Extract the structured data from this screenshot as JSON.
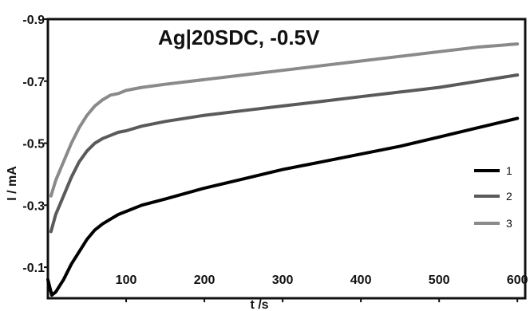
{
  "chart_data": {
    "type": "line",
    "title": "Ag|20SDC, -0.5V",
    "xlabel": "t /s",
    "ylabel": "I / mA",
    "xlim": [
      0,
      610
    ],
    "ylim": [
      0,
      -0.9
    ],
    "y_reversed": true,
    "x_ticks": [
      100,
      200,
      300,
      400,
      500,
      600
    ],
    "y_ticks": [
      -0.1,
      -0.3,
      -0.5,
      -0.7,
      -0.9
    ],
    "x_tick_labels": [
      "100",
      "200",
      "300",
      "400",
      "500",
      "600"
    ],
    "y_tick_labels": [
      "-0.1",
      "-0.3",
      "-0.5",
      "-0.7",
      "-0.9"
    ],
    "grid": false,
    "legend_position": "right",
    "series": [
      {
        "name": "1",
        "color": "#000000",
        "x": [
          0,
          5,
          10,
          20,
          30,
          40,
          50,
          60,
          70,
          80,
          90,
          100,
          120,
          150,
          200,
          250,
          300,
          350,
          400,
          450,
          500,
          550,
          600
        ],
        "y": [
          -0.06,
          -0.01,
          -0.02,
          -0.06,
          -0.11,
          -0.15,
          -0.19,
          -0.22,
          -0.24,
          -0.255,
          -0.27,
          -0.28,
          -0.3,
          -0.32,
          -0.355,
          -0.385,
          -0.415,
          -0.44,
          -0.465,
          -0.49,
          -0.52,
          -0.55,
          -0.58
        ]
      },
      {
        "name": "2",
        "color": "#5a5a5a",
        "x": [
          4,
          10,
          20,
          30,
          40,
          50,
          60,
          70,
          80,
          90,
          100,
          120,
          150,
          200,
          250,
          300,
          350,
          400,
          450,
          500,
          550,
          600
        ],
        "y": [
          -0.215,
          -0.27,
          -0.33,
          -0.39,
          -0.44,
          -0.475,
          -0.5,
          -0.515,
          -0.525,
          -0.535,
          -0.54,
          -0.555,
          -0.57,
          -0.59,
          -0.605,
          -0.62,
          -0.635,
          -0.65,
          -0.665,
          -0.68,
          -0.7,
          -0.72
        ]
      },
      {
        "name": "3",
        "color": "#8a8a8a",
        "x": [
          4,
          10,
          20,
          30,
          40,
          50,
          60,
          70,
          80,
          90,
          100,
          120,
          150,
          200,
          250,
          300,
          350,
          400,
          450,
          500,
          550,
          600
        ],
        "y": [
          -0.33,
          -0.38,
          -0.44,
          -0.5,
          -0.55,
          -0.59,
          -0.62,
          -0.64,
          -0.655,
          -0.66,
          -0.67,
          -0.68,
          -0.69,
          -0.705,
          -0.72,
          -0.735,
          -0.75,
          -0.765,
          -0.78,
          -0.795,
          -0.81,
          -0.82
        ]
      }
    ]
  }
}
